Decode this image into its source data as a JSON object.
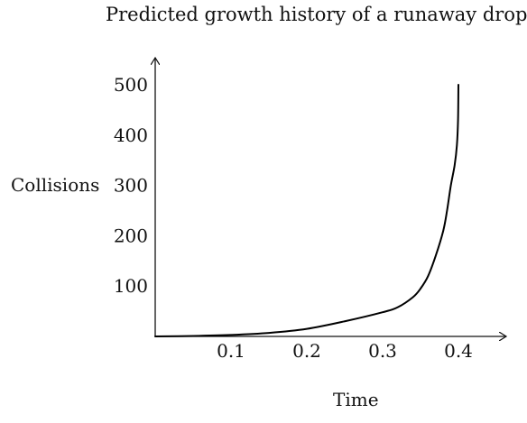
{
  "chart_data": {
    "type": "line",
    "title": "Predicted growth history of a runaway drop",
    "xlabel": "Time",
    "ylabel": "Collisions",
    "xlim": [
      0,
      0.4
    ],
    "ylim": [
      0,
      500
    ],
    "xticks": [
      0.1,
      0.2,
      0.3,
      0.4
    ],
    "yticks": [
      100,
      200,
      300,
      400,
      500
    ],
    "grid": false,
    "series": [
      {
        "x": [
          0,
          0.05,
          0.1,
          0.15,
          0.2,
          0.25,
          0.3,
          0.32,
          0.34,
          0.35,
          0.36,
          0.37,
          0.38,
          0.385,
          0.39,
          0.395,
          0.398,
          0.3995,
          0.4
        ],
        "y": [
          0,
          1,
          3,
          7,
          15,
          30,
          48,
          58,
          78,
          95,
          120,
          160,
          210,
          250,
          300,
          340,
          380,
          430,
          500
        ],
        "color": "#000000"
      }
    ]
  }
}
